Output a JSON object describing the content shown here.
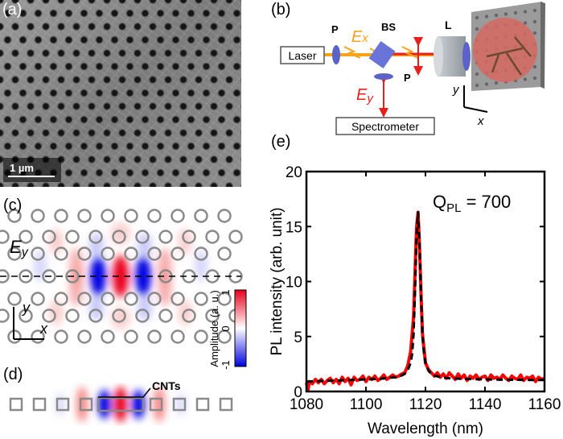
{
  "panels": {
    "a": {
      "label": "(a)",
      "scale_bar": "1 µm"
    },
    "b": {
      "label": "(b)",
      "laser": "Laser",
      "polarizer": "P",
      "polarizer2": "P",
      "beam_splitter": "BS",
      "lens": "L",
      "ex": "E",
      "ex_sub": "x",
      "ey": "E",
      "ey_sub": "y",
      "spectrometer": "Spectrometer",
      "axis_x": "x",
      "axis_y": "y",
      "colors": {
        "excitation": "#f7a21b",
        "emission": "#e8201c",
        "optics": "#5b63c8"
      }
    },
    "c": {
      "label": "(c)",
      "field": "E",
      "field_sub": "y",
      "axis_x": "x",
      "axis_y": "y",
      "colorbar": {
        "title": "Amplitude (a. u.)",
        "ticks": [
          "1",
          "0",
          "-1"
        ],
        "colors": {
          "max": "#e8001a",
          "zero": "#ffffff",
          "min": "#0000e0"
        }
      }
    },
    "d": {
      "label": "(d)",
      "annotation": "CNTs"
    },
    "e": {
      "label": "(e)"
    }
  },
  "chart_data": {
    "type": "line",
    "xlabel": "Wavelength (nm)",
    "ylabel": "PL intensity (arb. unit)",
    "xlim": [
      1080,
      1160
    ],
    "ylim": [
      0,
      20
    ],
    "xticks": [
      "1080",
      "1100",
      "1120",
      "1140",
      "1160"
    ],
    "yticks": [
      "0",
      "5",
      "10",
      "15",
      "20"
    ],
    "annotation": {
      "q": "Q",
      "q_sub": "PL",
      "text": " = 700"
    },
    "grid": false,
    "series": [
      {
        "style": "measured",
        "color": "#ff0000",
        "x": [
          1080,
          1080.5,
          1081,
          1082,
          1083,
          1084,
          1085,
          1086,
          1087,
          1088,
          1089,
          1090,
          1091,
          1092,
          1093,
          1094,
          1095,
          1096,
          1097,
          1098,
          1099,
          1100,
          1101,
          1102,
          1103,
          1104,
          1105,
          1106,
          1107,
          1108,
          1109,
          1110,
          1111,
          1112,
          1113,
          1114,
          1115,
          1116,
          1116.5,
          1117,
          1117.5,
          1118,
          1118.5,
          1119,
          1120,
          1121,
          1122,
          1123,
          1124,
          1125,
          1126,
          1127,
          1128,
          1129,
          1130,
          1131,
          1132,
          1133,
          1134,
          1135,
          1136,
          1137,
          1138,
          1139,
          1140,
          1141,
          1142,
          1143,
          1144,
          1145,
          1146,
          1147,
          1148,
          1149,
          1150,
          1151,
          1152,
          1153,
          1154,
          1155,
          1156,
          1157,
          1158,
          1159,
          1160
        ],
        "y": [
          0.8,
          0.1,
          0.9,
          0.7,
          1.1,
          0.8,
          1.1,
          0.7,
          1.0,
          1.2,
          0.8,
          1.1,
          0.7,
          1.3,
          0.9,
          1.2,
          0.6,
          1.3,
          1.0,
          1.1,
          1.4,
          0.9,
          1.3,
          1.1,
          1.4,
          1.0,
          1.2,
          1.5,
          1.1,
          1.3,
          1.5,
          1.3,
          1.4,
          1.6,
          1.7,
          2.3,
          3.6,
          6.8,
          10.8,
          14.9,
          16.3,
          13.2,
          8.8,
          5.2,
          2.6,
          2.0,
          1.7,
          1.4,
          1.7,
          1.3,
          1.6,
          1.2,
          1.7,
          1.4,
          1.1,
          1.6,
          1.2,
          1.5,
          1.0,
          1.4,
          1.2,
          1.5,
          1.1,
          1.3,
          1.4,
          1.0,
          1.5,
          1.2,
          1.3,
          1.1,
          1.5,
          1.2,
          1.0,
          1.4,
          1.2,
          1.1,
          1.5,
          1.0,
          1.3,
          1.2,
          1.4,
          0.9,
          1.3,
          1.1,
          1.2
        ]
      },
      {
        "style": "fit",
        "color": "#000000",
        "x": [
          1080,
          1085,
          1090,
          1095,
          1100,
          1105,
          1108,
          1110,
          1112,
          1113,
          1114,
          1115,
          1115.5,
          1116,
          1116.5,
          1117,
          1117.5,
          1118,
          1118.5,
          1119,
          1119.5,
          1120,
          1121,
          1122,
          1123,
          1125,
          1128,
          1132,
          1136,
          1140,
          1145,
          1150,
          1155,
          1160
        ],
        "y": [
          0.9,
          0.95,
          1.0,
          1.05,
          1.1,
          1.15,
          1.25,
          1.3,
          1.45,
          1.6,
          1.9,
          2.6,
          3.4,
          5.2,
          9.0,
          14.2,
          16.3,
          13.6,
          8.6,
          5.2,
          3.5,
          2.6,
          1.9,
          1.6,
          1.45,
          1.3,
          1.2,
          1.15,
          1.12,
          1.1,
          1.08,
          1.06,
          1.05,
          1.05
        ]
      }
    ]
  }
}
